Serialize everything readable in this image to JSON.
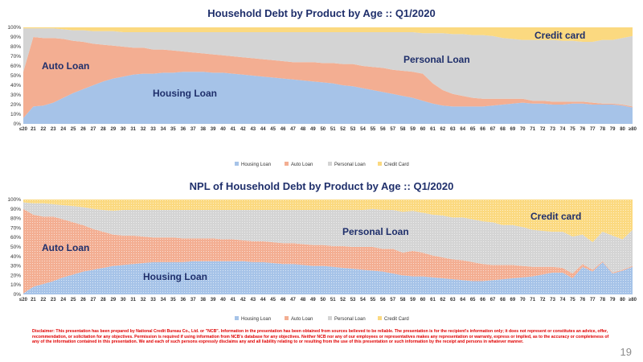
{
  "disclaimer": "Disclaimer: This presentation has been prepared by National Credit Bureau Co., Ltd. or \"NCB\". Information in the presentation has been obtained from sources believed to be reliable. The presentation is for the recipient's information only; it does not represent or constitutes an advice, offer, recommendation, or solicitation for any objectives. Permission is required if using information from NCB's database for any objectives. Neither NCB nor any of our employees or representatives makes any representation or warranty, express or implied, as to the accuracy or completeness of any of the information contained in this presentation. We and each of such persons expressly disclaims any and all liability relating to or resulting from the use of this presentation or such information by the receipt and persons in whatever manner.",
  "page_number": "19",
  "colors": {
    "housing": "#a6c3e8",
    "auto": "#f3ae92",
    "personal": "#d4d4d4",
    "credit": "#fbd980",
    "title": "#1f2f6b",
    "label": "#1f2f6b"
  },
  "chart_data": [
    {
      "type": "area",
      "stacked": true,
      "title": "Household Debt by Product by Age :: Q1/2020",
      "categories": [
        "≤20",
        "21",
        "22",
        "23",
        "24",
        "25",
        "26",
        "27",
        "28",
        "29",
        "30",
        "31",
        "32",
        "33",
        "34",
        "35",
        "36",
        "37",
        "38",
        "39",
        "40",
        "41",
        "42",
        "43",
        "44",
        "45",
        "46",
        "47",
        "48",
        "49",
        "50",
        "51",
        "52",
        "53",
        "54",
        "55",
        "56",
        "57",
        "58",
        "59",
        "60",
        "61",
        "62",
        "63",
        "64",
        "65",
        "66",
        "67",
        "68",
        "69",
        "70",
        "71",
        "72",
        "73",
        "74",
        "75",
        "76",
        "77",
        "78",
        "79",
        "80",
        "≥80"
      ],
      "yticks": [
        "0%",
        "10%",
        "20%",
        "30%",
        "40%",
        "50%",
        "60%",
        "70%",
        "80%",
        "90%",
        "100%"
      ],
      "ylim": [
        0,
        100
      ],
      "series": [
        {
          "name": "Housing Loan",
          "values": [
            6,
            18,
            19,
            22,
            27,
            32,
            36,
            40,
            44,
            47,
            49,
            51,
            52,
            52,
            53,
            53,
            54,
            54,
            54,
            53,
            53,
            52,
            51,
            50,
            49,
            48,
            47,
            46,
            45,
            44,
            43,
            42,
            40,
            39,
            37,
            35,
            33,
            31,
            29,
            27,
            24,
            21,
            19,
            18,
            18,
            18,
            18,
            19,
            20,
            21,
            22,
            21,
            21,
            20,
            20,
            21,
            21,
            20,
            20,
            20,
            19,
            17
          ]
        },
        {
          "name": "Auto Loan",
          "values": [
            48,
            72,
            70,
            67,
            61,
            54,
            49,
            43,
            38,
            34,
            31,
            28,
            27,
            25,
            24,
            23,
            21,
            20,
            19,
            19,
            18,
            18,
            18,
            18,
            18,
            18,
            18,
            18,
            19,
            20,
            20,
            21,
            22,
            23,
            23,
            24,
            25,
            25,
            26,
            27,
            28,
            21,
            16,
            13,
            11,
            9,
            8,
            7,
            6,
            5,
            4,
            3,
            3,
            3,
            3,
            2,
            2,
            2,
            1,
            1,
            1,
            1
          ]
        },
        {
          "name": "Personal Loan",
          "values": [
            45,
            9,
            10,
            10,
            10,
            11,
            12,
            13,
            14,
            15,
            15,
            16,
            16,
            18,
            18,
            19,
            20,
            21,
            22,
            23,
            24,
            25,
            26,
            27,
            28,
            29,
            30,
            31,
            31,
            31,
            32,
            32,
            33,
            33,
            35,
            36,
            37,
            39,
            40,
            41,
            42,
            52,
            59,
            62,
            64,
            65,
            66,
            65,
            63,
            62,
            61,
            63,
            63,
            64,
            63,
            63,
            62,
            63,
            66,
            66,
            69,
            73
          ]
        },
        {
          "name": "Credit Card",
          "values": [
            1,
            1,
            1,
            1,
            2,
            3,
            3,
            4,
            4,
            4,
            5,
            5,
            5,
            5,
            5,
            5,
            5,
            5,
            5,
            5,
            5,
            5,
            5,
            5,
            5,
            5,
            5,
            5,
            5,
            5,
            5,
            5,
            5,
            5,
            5,
            5,
            5,
            5,
            5,
            5,
            6,
            6,
            6,
            7,
            7,
            8,
            8,
            9,
            11,
            12,
            13,
            13,
            13,
            13,
            14,
            14,
            15,
            15,
            13,
            13,
            11,
            9
          ]
        }
      ],
      "annotations": [
        "Housing Loan",
        "Auto Loan",
        "Personal Loan",
        "Credit card"
      ],
      "legend": "bottom"
    },
    {
      "type": "area",
      "stacked": true,
      "title": "NPL of Household Debt by Product by Age :: Q1/2020",
      "categories": [
        "≤20",
        "21",
        "22",
        "23",
        "24",
        "25",
        "26",
        "27",
        "28",
        "29",
        "30",
        "31",
        "32",
        "33",
        "34",
        "35",
        "36",
        "37",
        "38",
        "39",
        "40",
        "41",
        "42",
        "43",
        "44",
        "45",
        "46",
        "47",
        "48",
        "49",
        "50",
        "51",
        "52",
        "53",
        "54",
        "55",
        "56",
        "57",
        "58",
        "59",
        "60",
        "61",
        "62",
        "63",
        "64",
        "65",
        "66",
        "67",
        "68",
        "69",
        "70",
        "71",
        "72",
        "73",
        "74",
        "75",
        "76",
        "77",
        "78",
        "79",
        "80",
        "≥80"
      ],
      "yticks": [
        "0%",
        "10%",
        "20%",
        "30%",
        "40%",
        "50%",
        "60%",
        "70%",
        "80%",
        "90%",
        "100%"
      ],
      "ylim": [
        0,
        100
      ],
      "series": [
        {
          "name": "Housing Loan",
          "values": [
            1,
            8,
            11,
            14,
            18,
            21,
            24,
            26,
            28,
            30,
            31,
            32,
            33,
            34,
            34,
            34,
            34,
            35,
            35,
            35,
            35,
            35,
            35,
            34,
            34,
            33,
            32,
            32,
            31,
            30,
            30,
            29,
            28,
            27,
            26,
            25,
            24,
            22,
            20,
            19,
            19,
            18,
            17,
            16,
            15,
            14,
            14,
            15,
            16,
            17,
            18,
            19,
            21,
            23,
            23,
            17,
            29,
            24,
            34,
            22,
            25,
            29
          ]
        },
        {
          "name": "Auto Loan",
          "values": [
            89,
            76,
            71,
            68,
            61,
            55,
            49,
            43,
            38,
            33,
            31,
            30,
            28,
            26,
            26,
            26,
            25,
            24,
            24,
            24,
            23,
            23,
            22,
            22,
            22,
            22,
            22,
            22,
            22,
            22,
            22,
            22,
            23,
            23,
            24,
            25,
            24,
            26,
            24,
            27,
            25,
            23,
            22,
            21,
            21,
            20,
            18,
            16,
            15,
            14,
            12,
            10,
            8,
            6,
            5,
            5,
            3,
            2,
            1,
            1,
            1,
            1
          ]
        },
        {
          "name": "Personal Loan",
          "values": [
            7,
            12,
            14,
            13,
            15,
            17,
            19,
            21,
            23,
            25,
            27,
            27,
            28,
            29,
            29,
            29,
            30,
            30,
            30,
            30,
            31,
            31,
            32,
            33,
            33,
            34,
            35,
            35,
            36,
            37,
            37,
            38,
            38,
            39,
            39,
            40,
            41,
            41,
            43,
            42,
            42,
            43,
            44,
            44,
            45,
            45,
            45,
            45,
            42,
            42,
            41,
            39,
            38,
            37,
            38,
            39,
            31,
            29,
            31,
            39,
            32,
            38
          ]
        },
        {
          "name": "Credit Card",
          "values": [
            3,
            4,
            4,
            5,
            6,
            7,
            8,
            10,
            11,
            12,
            11,
            11,
            11,
            11,
            11,
            11,
            11,
            11,
            11,
            11,
            11,
            11,
            11,
            11,
            11,
            11,
            11,
            11,
            11,
            11,
            11,
            11,
            11,
            11,
            11,
            10,
            11,
            11,
            13,
            12,
            14,
            16,
            17,
            19,
            19,
            21,
            23,
            24,
            27,
            27,
            29,
            32,
            33,
            34,
            34,
            39,
            37,
            45,
            34,
            38,
            42,
            32
          ]
        }
      ],
      "annotations": [
        "Housing Loan",
        "Auto Loan",
        "Personal Loan",
        "Credit card"
      ],
      "legend": "bottom"
    }
  ]
}
